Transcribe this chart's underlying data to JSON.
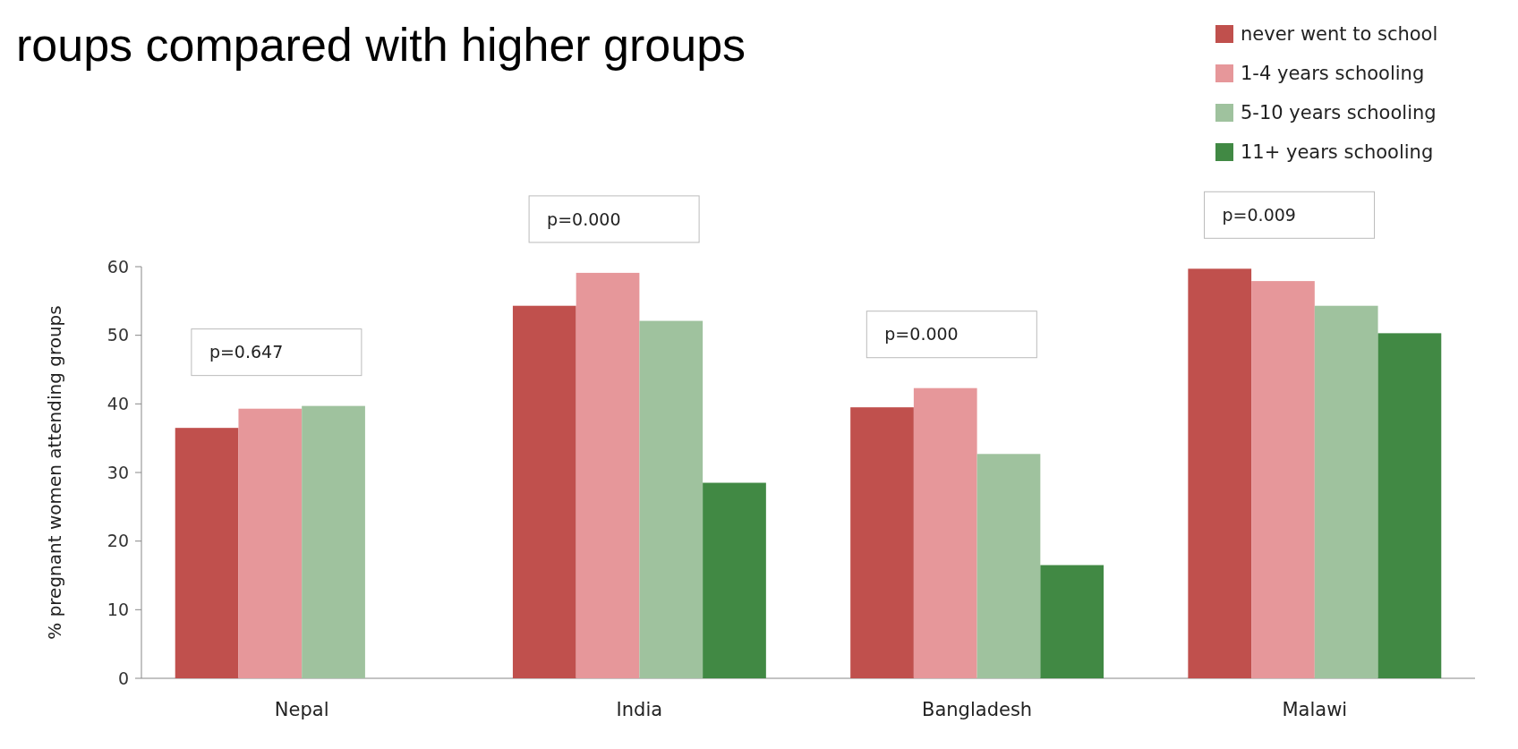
{
  "chart_data": {
    "type": "bar",
    "title": "roups compared with higher groups",
    "ylabel": "% pregnant women attending groups",
    "categories": [
      "Nepal",
      "India",
      "Bangladesh",
      "Malawi"
    ],
    "series": [
      {
        "name": "never went to school",
        "color": "#c0504d",
        "values": [
          36.5,
          54.3,
          39.5,
          59.7
        ]
      },
      {
        "name": "1-4 years schooling",
        "color": "#e6979a",
        "values": [
          39.3,
          59.1,
          42.3,
          57.9
        ]
      },
      {
        "name": "5-10 years schooling",
        "color": "#9fc29e",
        "values": [
          39.7,
          52.1,
          32.7,
          54.3
        ]
      },
      {
        "name": "11+ years schooling",
        "color": "#418944",
        "values": [
          null,
          28.5,
          16.5,
          50.3
        ]
      }
    ],
    "ylim": [
      0,
      60
    ],
    "yticks": [
      0,
      10,
      20,
      30,
      40,
      50,
      60
    ],
    "legend": "top right",
    "annotations": [
      "p=0.647",
      "p=0.000",
      "p=0.000",
      "p=0.009"
    ]
  }
}
